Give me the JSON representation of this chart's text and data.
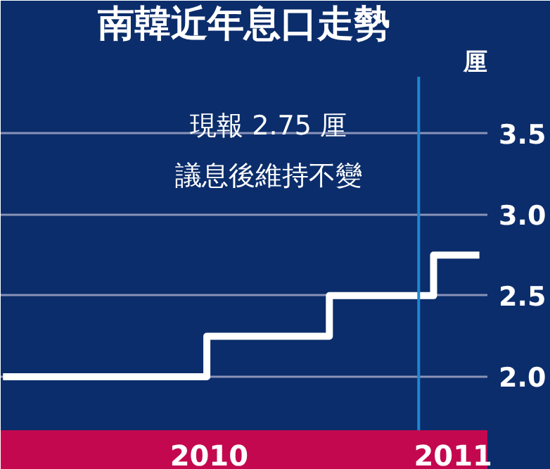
{
  "chart_data": {
    "type": "step",
    "title": "南韓近年息口走勢",
    "ylabel": "厘",
    "x": [
      "2010-01-03",
      "2010-06-30",
      "2010-10-15",
      "2011-01-14",
      "2011-02-23"
    ],
    "series": [
      {
        "color": "#ffffff",
        "values": [
          2.0,
          2.25,
          2.5,
          2.75,
          2.75
        ]
      }
    ],
    "xlim": [
      "2010-01-01",
      "2011-03-02"
    ],
    "xticks": [
      {
        "value": "2010-07-02",
        "label": "2010"
      },
      {
        "value": "2011-01-31",
        "label": "2011"
      }
    ],
    "ylim": [
      1.67,
      3.85
    ],
    "yticks": [
      {
        "value": 2,
        "label": "2.0"
      },
      2.5,
      {
        "value": 3,
        "label": "3.0"
      },
      3.5
    ],
    "grid": "y",
    "marker": "none",
    "line_style": "solid",
    "ref_lines": [
      {
        "axis": "x",
        "value": "2011-01-01",
        "color": "#1e88d0"
      }
    ],
    "annotations": [
      "現報 2.75 厘",
      "議息後維持不變"
    ]
  }
}
